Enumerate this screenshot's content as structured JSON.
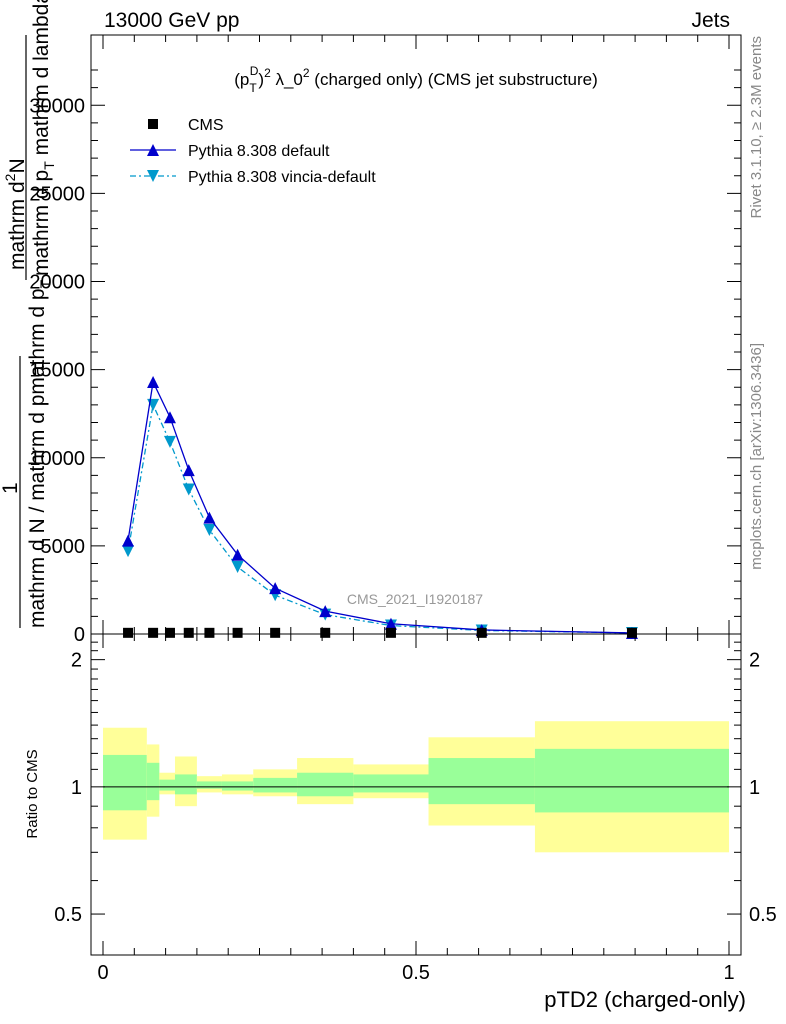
{
  "header": {
    "left": "13000 GeV pp",
    "right": "Jets"
  },
  "side_labels": {
    "rivet": "Rivet 3.1.10, ≥ 2.3M events",
    "mcplots": "mcplots.cern.ch [arXiv:1306.3436]"
  },
  "watermark": "CMS_2021_I1920187",
  "chart_data": [
    {
      "type": "line",
      "title": "(p_T^D)^2 λ_0^2 (charged only) (CMS jet substructure)",
      "title_parts": {
        "pre": "(p",
        "sup1": "D",
        "sub1": "T",
        "mid": ")",
        "sup2": "2",
        "lam": " λ_0",
        "sup3": "2",
        "post": " (charged only) (CMS jet substructure)"
      },
      "ylabel": "1 / mathrm d N / mathrm d pmathrm d p_T mathrm d lambda",
      "ylabel_parts": {
        "num_a": "mathrm d",
        "num_a_sup": "2",
        "num_a_n": "N",
        "num_b": "mathrm d p",
        "num_b_sub": "T",
        "num_b_rest": " mathrm d lambda",
        "one": "1",
        "den": "mathrm d N / mathrm d pmathrm d p",
        "den_sub": "T"
      },
      "xlim": [
        0,
        1
      ],
      "ylim": [
        0,
        32000
      ],
      "y_ticks": [
        0,
        5000,
        10000,
        15000,
        20000,
        25000,
        30000
      ],
      "y_tick_labels": [
        "0",
        "5000",
        "10000",
        "15000",
        "20000",
        "25000",
        "30000"
      ],
      "legend_position": "top-left",
      "series": [
        {
          "name": "CMS",
          "marker": "square",
          "color": "#000000",
          "x": [
            0.04,
            0.08,
            0.107,
            0.137,
            0.17,
            0.215,
            0.275,
            0.355,
            0.46,
            0.605,
            0.845
          ],
          "values": [
            10,
            10,
            10,
            10,
            10,
            10,
            10,
            10,
            10,
            10,
            10
          ]
        },
        {
          "name": "Pythia 8.308 default",
          "marker": "triangle-up",
          "line": "solid",
          "color": "#0000cc",
          "x": [
            0.04,
            0.08,
            0.107,
            0.137,
            0.17,
            0.215,
            0.275,
            0.355,
            0.46,
            0.605,
            0.845
          ],
          "values": [
            5300,
            14300,
            12300,
            9300,
            6600,
            4500,
            2600,
            1300,
            580,
            230,
            60
          ]
        },
        {
          "name": "Pythia 8.308 vincia-default",
          "marker": "triangle-down",
          "line": "dashdot",
          "color": "#0099cc",
          "x": [
            0.04,
            0.08,
            0.107,
            0.137,
            0.17,
            0.215,
            0.275,
            0.355,
            0.46,
            0.605,
            0.845
          ],
          "values": [
            4700,
            13000,
            10900,
            8200,
            5900,
            3800,
            2200,
            1100,
            480,
            200,
            60
          ]
        }
      ]
    },
    {
      "type": "area",
      "ylabel": "Ratio to CMS",
      "xlabel": "pTD2 (charged-only)",
      "xlim": [
        0,
        1
      ],
      "ylim": [
        0.4,
        2.3
      ],
      "y_scale": "log",
      "y_ticks": [
        0.5,
        1,
        2
      ],
      "y_tick_labels": [
        "0.5",
        "1",
        "2"
      ],
      "x_ticks": [
        0,
        0.5,
        1
      ],
      "x_tick_labels": [
        "0",
        "0.5",
        "1"
      ],
      "reference_line": 1,
      "bin_edges": [
        0,
        0.07,
        0.09,
        0.115,
        0.15,
        0.19,
        0.24,
        0.31,
        0.4,
        0.52,
        0.69,
        1.0
      ],
      "band_colors": {
        "outer": "#ffff99",
        "inner": "#99ff99"
      },
      "outer_band": {
        "lo": [
          0.75,
          0.85,
          0.96,
          0.9,
          0.97,
          0.96,
          0.95,
          0.91,
          0.94,
          0.81,
          0.7
        ],
        "hi": [
          1.38,
          1.26,
          1.08,
          1.18,
          1.06,
          1.07,
          1.1,
          1.17,
          1.13,
          1.31,
          1.43
        ]
      },
      "inner_band": {
        "lo": [
          0.88,
          0.93,
          0.98,
          0.96,
          0.99,
          0.98,
          0.97,
          0.95,
          0.97,
          0.91,
          0.87
        ],
        "hi": [
          1.19,
          1.14,
          1.04,
          1.07,
          1.03,
          1.03,
          1.05,
          1.08,
          1.07,
          1.17,
          1.23
        ]
      }
    }
  ]
}
